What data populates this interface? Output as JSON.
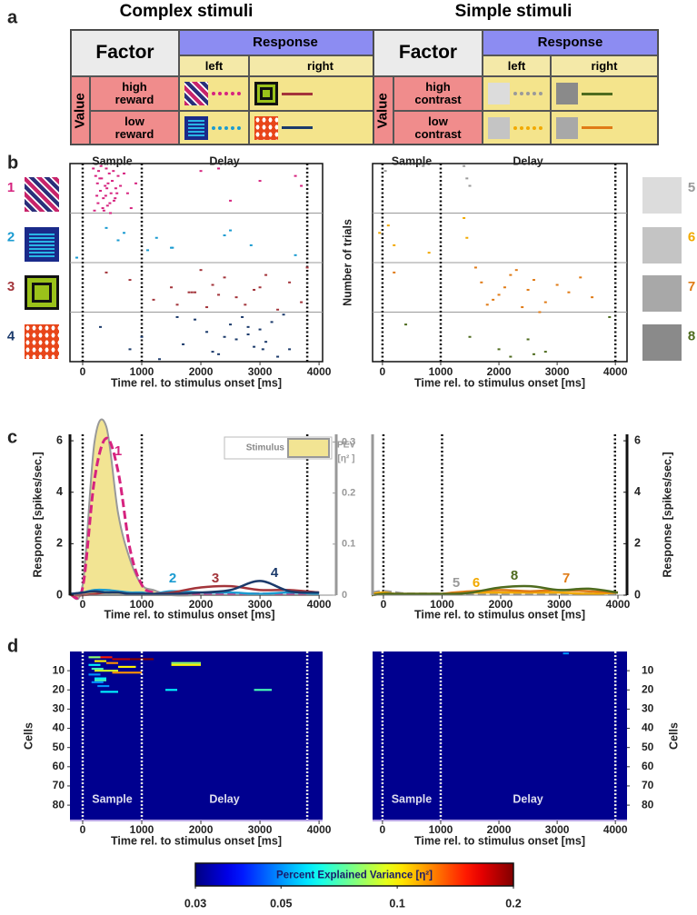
{
  "figure_labels": [
    "a",
    "b",
    "c",
    "d"
  ],
  "tables": [
    {
      "title": "Complex stimuli",
      "factor": "Factor",
      "response": "Response",
      "columns": [
        "left",
        "right"
      ],
      "value": "Value",
      "rows": [
        "high reward",
        "low reward"
      ]
    },
    {
      "title": "Simple stimuli",
      "factor": "Factor",
      "response": "Response",
      "columns": [
        "left",
        "right"
      ],
      "value": "Value",
      "rows": [
        "high contrast",
        "low contrast"
      ]
    }
  ],
  "chart_data": [
    {
      "type": "raster",
      "xlabel": "Time rel. to stimulus onset [ms]",
      "annotations": [
        "Sample",
        "Delay"
      ],
      "xlim": [
        -215,
        4060
      ],
      "xticks": [
        0,
        1000,
        2000,
        3000,
        4000
      ],
      "ylim": [
        0,
        80
      ],
      "event_lines": [
        0,
        1000,
        3800
      ],
      "icon_side": "left",
      "series": [
        {
          "name": "1",
          "color": "#d6237f",
          "x": [
            180,
            220,
            250,
            270,
            300,
            320,
            350,
            380,
            400,
            420,
            450,
            480,
            500,
            530,
            560,
            600,
            200,
            260,
            310,
            340,
            390,
            430,
            470,
            520,
            580,
            640,
            240,
            290,
            360,
            410,
            460,
            550,
            700,
            760,
            820,
            900,
            2000,
            2300,
            2500,
            3000,
            3600,
            3700
          ],
          "values": [
            2,
            5,
            8,
            3,
            11,
            6,
            14,
            9,
            2,
            17,
            4,
            12,
            7,
            15,
            10,
            5,
            19,
            16,
            1,
            18,
            13,
            8,
            20,
            3,
            12,
            9,
            13,
            6,
            19,
            10,
            16,
            14,
            4,
            12,
            18,
            8,
            3,
            2,
            15,
            7,
            5,
            9
          ]
        },
        {
          "name": "2",
          "color": "#1a9bd1",
          "x": [
            -100,
            400,
            600,
            700,
            1100,
            1250,
            1500,
            1520,
            2400,
            2500,
            2850,
            3600
          ],
          "values": [
            38,
            26,
            31,
            28,
            35,
            30,
            34,
            34,
            29,
            27,
            33,
            37
          ]
        },
        {
          "name": "3",
          "color": "#a3343a",
          "x": [
            400,
            800,
            1200,
            1500,
            1800,
            1850,
            1900,
            2000,
            2100,
            2200,
            2400,
            2600,
            2750,
            2900,
            3100,
            3300,
            3500,
            3700,
            3800,
            1600,
            2300,
            3000
          ],
          "values": [
            44,
            47,
            55,
            50,
            52,
            52,
            52,
            43,
            58,
            49,
            46,
            54,
            57,
            51,
            45,
            59,
            48,
            56,
            42,
            57,
            53,
            50
          ]
        },
        {
          "name": "4",
          "color": "#1b3a6b",
          "x": [
            300,
            800,
            1000,
            1300,
            1700,
            1900,
            2100,
            2300,
            2500,
            2600,
            2700,
            2800,
            2900,
            3000,
            3100,
            3200,
            3300,
            3400,
            3500,
            2200,
            2400,
            3050,
            1600,
            2800
          ],
          "values": [
            66,
            75,
            70,
            79,
            73,
            63,
            68,
            77,
            65,
            71,
            62,
            69,
            74,
            67,
            72,
            64,
            78,
            61,
            75,
            76,
            70,
            75,
            62,
            66
          ]
        }
      ]
    },
    {
      "type": "raster",
      "xlabel": "Time rel. to stimulus onset [ms]",
      "ylabel": "Number of trials",
      "annotations": [
        "Sample",
        "Delay"
      ],
      "xlim": [
        -170,
        4200
      ],
      "xticks": [
        0,
        1000,
        2000,
        3000,
        4000
      ],
      "ylim": [
        0,
        80
      ],
      "event_lines": [
        0,
        1000,
        4000
      ],
      "icon_side": "right",
      "series": [
        {
          "name": "5",
          "color": "#9a9a9a",
          "x": [
            50,
            700,
            1400,
            1450,
            1500
          ],
          "values": [
            3,
            1,
            1,
            6,
            9
          ]
        },
        {
          "name": "6",
          "color": "#f2a900",
          "x": [
            -50,
            100,
            200,
            1400,
            1450,
            800
          ],
          "values": [
            28,
            25,
            33,
            22,
            30,
            36
          ]
        },
        {
          "name": "7",
          "color": "#e07b16",
          "x": [
            200,
            1600,
            1700,
            1900,
            2000,
            2100,
            2200,
            2400,
            2500,
            2600,
            2800,
            3000,
            3200,
            3400,
            3600,
            1800,
            2300,
            2700
          ],
          "values": [
            44,
            42,
            48,
            55,
            53,
            50,
            45,
            58,
            51,
            47,
            56,
            49,
            52,
            46,
            54,
            57,
            43,
            60
          ]
        },
        {
          "name": "8",
          "color": "#4e6b1e",
          "x": [
            400,
            1500,
            2000,
            2200,
            2500,
            2600,
            2800,
            3900
          ],
          "values": [
            65,
            70,
            75,
            78,
            71,
            77,
            76,
            62
          ]
        }
      ]
    },
    {
      "type": "line",
      "xlabel": "Time rel. to stimulus onset [ms]",
      "ylabel": "Response [spikes/sec.]",
      "y2label": [
        "PEV",
        "[η² ]"
      ],
      "yaxis": "left",
      "xlim": [
        -215,
        4290
      ],
      "xticks": [
        0,
        1000,
        2000,
        3000,
        4000
      ],
      "ylim": [
        0,
        6.25
      ],
      "yticks": [
        0,
        2,
        4,
        6
      ],
      "y2lim": [
        0,
        0.315
      ],
      "y2ticks": [
        0,
        0.1,
        0.2,
        0.3
      ],
      "event_lines": [
        0,
        1000,
        3800
      ],
      "x": [
        -200,
        0,
        200,
        400,
        600,
        800,
        1000,
        1200,
        1500,
        2000,
        2500,
        3000,
        3500,
        4000
      ],
      "series": [
        {
          "name": "Stimulus",
          "type": "area",
          "axis": "y2",
          "color": "#f2e493",
          "values": [
            0,
            0.02,
            0.3,
            0.33,
            0.16,
            0.07,
            0.02,
            0.01,
            0,
            0,
            0,
            0,
            0,
            0
          ]
        },
        {
          "name": "1",
          "color": "#d6237f",
          "dashed": true,
          "values": [
            0,
            0.3,
            4.5,
            6.1,
            4.8,
            1.8,
            0.4,
            0.1,
            0.05,
            0.05,
            0.05,
            0.05,
            0.05,
            0.1
          ]
        },
        {
          "name": "2",
          "color": "#1a9bd1",
          "values": [
            0.05,
            0.1,
            0.2,
            0.2,
            0.15,
            0.1,
            0.1,
            0.05,
            0.15,
            0.1,
            0.1,
            0.05,
            0.1,
            0.05
          ]
        },
        {
          "name": "3",
          "color": "#a3343a",
          "values": [
            0,
            0,
            0.05,
            0.1,
            0.1,
            0.05,
            0.05,
            0.05,
            0.1,
            0.3,
            0.35,
            0.2,
            0.2,
            0.1
          ]
        },
        {
          "name": "4",
          "color": "#1b3a6b",
          "values": [
            0.05,
            0.1,
            0.15,
            0.1,
            0.1,
            0.05,
            0.05,
            0.05,
            0.05,
            0.1,
            0.2,
            0.55,
            0.15,
            0.1
          ]
        }
      ]
    },
    {
      "type": "line",
      "xlabel": "Time rel. to stimulus onset [ms]",
      "ylabel": "Response [spikes/sec.]",
      "yaxis": "right",
      "xlim": [
        -185,
        4155
      ],
      "xticks": [
        0,
        1000,
        2000,
        3000,
        4000
      ],
      "ylim": [
        0,
        6.25
      ],
      "yticks": [
        0,
        2,
        4,
        6
      ],
      "event_lines": [
        0,
        1000,
        3950
      ],
      "x": [
        -200,
        0,
        200,
        400,
        600,
        800,
        1000,
        1200,
        1500,
        2000,
        2500,
        3000,
        3500,
        4000
      ],
      "series": [
        {
          "name": "5",
          "color": "#9a9a9a",
          "dashed": true,
          "values": [
            0.1,
            0.15,
            0.1,
            0.05,
            0.05,
            0.05,
            0.05,
            0.05,
            0.05,
            0.05,
            0.05,
            0.05,
            0.05,
            0.05
          ]
        },
        {
          "name": "6",
          "color": "#f2a900",
          "values": [
            0.05,
            0.1,
            0.05,
            0.05,
            0.05,
            0.05,
            0.05,
            0.05,
            0.1,
            0.1,
            0.1,
            0.1,
            0.05,
            0.1
          ]
        },
        {
          "name": "7",
          "color": "#e07b16",
          "values": [
            0,
            0.05,
            0.05,
            0.05,
            0.05,
            0.05,
            0.05,
            0.1,
            0.15,
            0.2,
            0.15,
            0.2,
            0.15,
            0.1
          ]
        },
        {
          "name": "8",
          "color": "#4e6b1e",
          "values": [
            0,
            0.05,
            0.05,
            0.05,
            0.05,
            0.05,
            0.05,
            0.05,
            0.1,
            0.3,
            0.35,
            0.2,
            0.25,
            0.1
          ]
        }
      ]
    },
    {
      "type": "heatmap",
      "xlabel": "Time rel. to stimulus onset [ms]",
      "ylabel": "Cells",
      "annotations": [
        "Sample",
        "Delay"
      ],
      "yaxis": "left",
      "xlim": [
        -215,
        4060
      ],
      "xticks": [
        0,
        1000,
        2000,
        3000,
        4000
      ],
      "ylim": [
        0,
        88
      ],
      "yticks": [
        10,
        20,
        30,
        40,
        50,
        60,
        70,
        80
      ],
      "event_lines": [
        0,
        1000,
        3800
      ],
      "clim": [
        0.03,
        0.2
      ],
      "cells": [
        [
          100,
          300,
          3,
          0.08
        ],
        [
          300,
          500,
          3,
          0.15
        ],
        [
          500,
          800,
          4,
          0.18
        ],
        [
          800,
          1200,
          4,
          0.2
        ],
        [
          200,
          400,
          5,
          0.1
        ],
        [
          400,
          600,
          6,
          0.12
        ],
        [
          100,
          300,
          7,
          0.06
        ],
        [
          600,
          900,
          8,
          0.1
        ],
        [
          150,
          350,
          9,
          0.07
        ],
        [
          200,
          600,
          10,
          0.09
        ],
        [
          500,
          1000,
          11,
          0.12
        ],
        [
          100,
          300,
          12,
          0.05
        ],
        [
          200,
          400,
          14,
          0.06
        ],
        [
          200,
          400,
          15,
          0.07
        ],
        [
          150,
          350,
          16,
          0.05
        ],
        [
          250,
          450,
          18,
          0.05
        ],
        [
          300,
          600,
          21,
          0.06
        ],
        [
          1500,
          2000,
          6,
          0.08
        ],
        [
          1500,
          2000,
          7,
          0.1
        ],
        [
          1400,
          1600,
          20,
          0.06
        ],
        [
          2900,
          3200,
          20,
          0.07
        ]
      ]
    },
    {
      "type": "heatmap",
      "xlabel": "Time rel. to stimulus onset [ms]",
      "ylabel": "Cells",
      "annotations": [
        "Sample",
        "Delay"
      ],
      "yaxis": "right",
      "xlim": [
        -170,
        4200
      ],
      "xticks": [
        0,
        1000,
        2000,
        3000,
        4000
      ],
      "ylim": [
        0,
        88
      ],
      "yticks": [
        10,
        20,
        30,
        40,
        50,
        60,
        70,
        80
      ],
      "event_lines": [
        0,
        1000,
        4000
      ],
      "clim": [
        0.03,
        0.2
      ],
      "cells": [
        [
          3100,
          3200,
          1,
          0.05
        ]
      ]
    },
    {
      "type": "colorbar",
      "title": "Percent Explained Variance [η²]",
      "log_scale": true,
      "xlim": [
        0.03,
        0.2
      ],
      "xticks": [
        0.03,
        0.05,
        0.1,
        0.2
      ]
    }
  ]
}
